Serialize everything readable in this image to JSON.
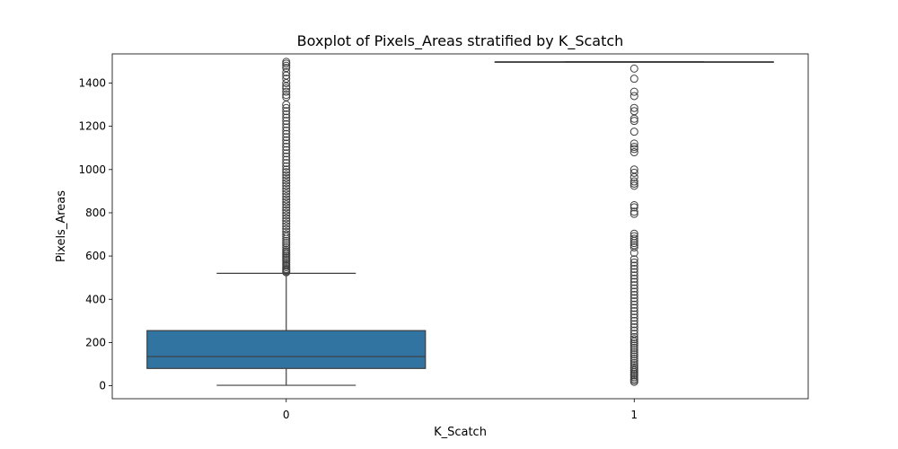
{
  "chart_data": {
    "type": "box",
    "title": "Boxplot of Pixels_Areas stratified by K_Scatch",
    "xlabel": "K_Scatch",
    "ylabel": "Pixels_Areas",
    "ylim": [
      -60,
      1535
    ],
    "yticks": [
      0,
      200,
      400,
      600,
      800,
      1000,
      1200,
      1400
    ],
    "categories": [
      "0",
      "1"
    ],
    "box_color": "#3274a1",
    "line_color": "#3f3f3f",
    "grid": false,
    "boxes": [
      {
        "category": "0",
        "whisker_low": 2,
        "q1": 80,
        "median": 135,
        "q3": 255,
        "whisker_high": 520,
        "fill": "#3274a1",
        "outliers": [
          525,
          530,
          535,
          540,
          548,
          555,
          562,
          570,
          578,
          585,
          592,
          600,
          608,
          615,
          622,
          630,
          640,
          650,
          660,
          670,
          680,
          690,
          700,
          712,
          725,
          738,
          750,
          762,
          775,
          788,
          800,
          812,
          825,
          838,
          850,
          862,
          875,
          888,
          900,
          912,
          925,
          938,
          950,
          962,
          975,
          988,
          1000,
          1015,
          1030,
          1045,
          1060,
          1075,
          1090,
          1105,
          1120,
          1135,
          1150,
          1165,
          1180,
          1195,
          1210,
          1225,
          1240,
          1255,
          1270,
          1285,
          1300,
          1335,
          1345,
          1360,
          1375,
          1385,
          1400,
          1420,
          1435,
          1450,
          1470,
          1480,
          1490,
          1498
        ]
      },
      {
        "category": "1",
        "whisker_low": 1498,
        "q1": 1498,
        "median": 1498,
        "q3": 1498,
        "whisker_high": 1498,
        "fill": "#3274a1",
        "outliers": [
          18,
          25,
          32,
          40,
          48,
          55,
          62,
          70,
          78,
          86,
          95,
          105,
          115,
          125,
          135,
          145,
          155,
          165,
          175,
          185,
          195,
          205,
          215,
          225,
          240,
          255,
          270,
          285,
          300,
          315,
          330,
          345,
          360,
          375,
          390,
          405,
          420,
          435,
          450,
          465,
          480,
          495,
          510,
          525,
          540,
          555,
          570,
          585,
          615,
          640,
          650,
          660,
          670,
          680,
          692,
          703,
          795,
          805,
          825,
          835,
          925,
          935,
          945,
          965,
          985,
          1000,
          1080,
          1095,
          1105,
          1120,
          1175,
          1225,
          1235,
          1270,
          1285,
          1340,
          1360,
          1420,
          1467
        ]
      }
    ]
  }
}
